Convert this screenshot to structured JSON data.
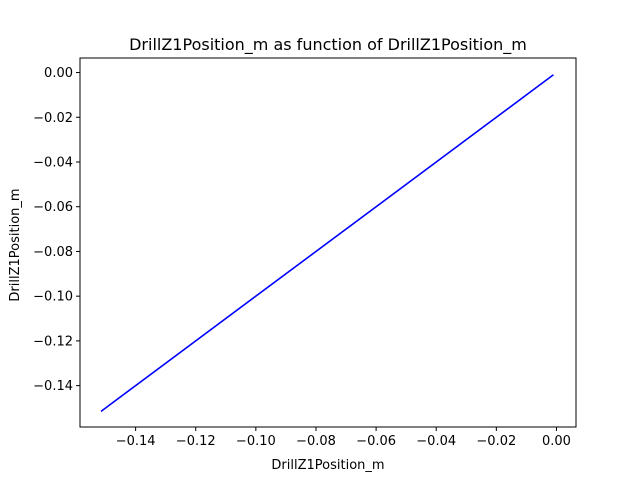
{
  "chart_data": {
    "type": "line",
    "title": "DrillZ1Position_m as function of DrillZ1Position_m",
    "xlabel": "DrillZ1Position_m",
    "ylabel": "DrillZ1Position_m",
    "xlim": [
      -0.1585,
      0.0065
    ],
    "ylim": [
      -0.1585,
      0.0065
    ],
    "xticks": [
      -0.14,
      -0.12,
      -0.1,
      -0.08,
      -0.06,
      -0.04,
      -0.02,
      0.0
    ],
    "xtick_labels": [
      "−0.14",
      "−0.12",
      "−0.10",
      "−0.08",
      "−0.06",
      "−0.04",
      "−0.02",
      "0.00"
    ],
    "yticks": [
      0.0,
      -0.02,
      -0.04,
      -0.06,
      -0.08,
      -0.1,
      -0.12,
      -0.14
    ],
    "ytick_labels": [
      "0.00",
      "−0.02",
      "−0.04",
      "−0.06",
      "−0.08",
      "−0.10",
      "−0.12",
      "−0.14"
    ],
    "grid": false,
    "series": [
      {
        "color": "#0000ff",
        "x": [
          -0.1515,
          -0.001
        ],
        "y": [
          -0.1515,
          -0.001
        ]
      }
    ]
  }
}
